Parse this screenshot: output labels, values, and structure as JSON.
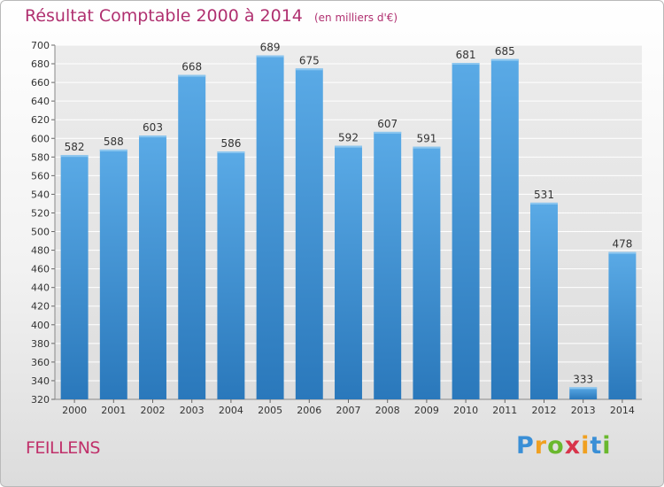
{
  "header": {
    "title": "Résultat Comptable 2000 à 2014",
    "subtitle": "(en milliers d'€)"
  },
  "footer": {
    "commune": "FEILLENS",
    "logo_text": "Proxiti"
  },
  "colors": {
    "bar_top": "#5aaae6",
    "bar_bottom": "#2a78bb",
    "grid": "#ffffff",
    "title": "#b03070",
    "plot_bg": "#e6e6e6"
  },
  "chart_data": {
    "type": "bar",
    "title": "Résultat Comptable 2000 à 2014",
    "xlabel": "",
    "ylabel": "",
    "categories": [
      "2000",
      "2001",
      "2002",
      "2003",
      "2004",
      "2005",
      "2006",
      "2007",
      "2008",
      "2009",
      "2010",
      "2011",
      "2012",
      "2013",
      "2014"
    ],
    "values": [
      582,
      588,
      603,
      668,
      586,
      689,
      675,
      592,
      607,
      591,
      681,
      685,
      531,
      333,
      478
    ],
    "ylim": [
      320,
      700
    ],
    "yticks": [
      320,
      340,
      360,
      380,
      400,
      420,
      440,
      460,
      480,
      500,
      520,
      540,
      560,
      580,
      600,
      620,
      640,
      660,
      680,
      700
    ],
    "grid": true
  }
}
